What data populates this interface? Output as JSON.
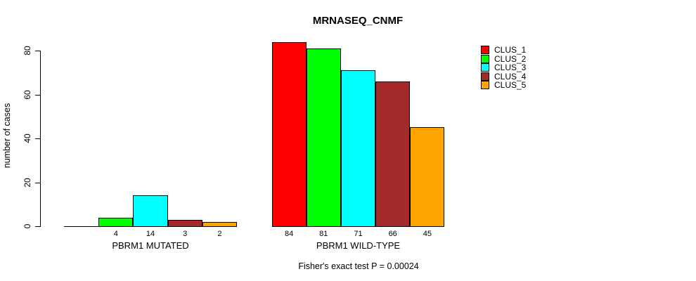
{
  "title": "MRNASEQ_CNMF",
  "subtitle": "Fisher's exact test P = 0.00024",
  "y_axis": {
    "label": "number of cases",
    "ticks": [
      0,
      20,
      40,
      60,
      80
    ]
  },
  "legend": {
    "items": [
      {
        "label": "CLUS_1",
        "color": "#FF0000"
      },
      {
        "label": "CLUS_2",
        "color": "#00FF00"
      },
      {
        "label": "CLUS_3",
        "color": "#00FFFF"
      },
      {
        "label": "CLUS_4",
        "color": "#A52A2A"
      },
      {
        "label": "CLUS_5",
        "color": "#FFA500"
      }
    ]
  },
  "chart_data": {
    "type": "bar",
    "title": "MRNASEQ_CNMF",
    "xlabel": "",
    "ylabel": "number of cases",
    "ylim": [
      0,
      84
    ],
    "axis_ticks": [
      0,
      20,
      40,
      60,
      80
    ],
    "grid": false,
    "legend_position": "right",
    "categories": [
      "PBRM1 MUTATED",
      "PBRM1 WILD-TYPE"
    ],
    "series": [
      {
        "name": "CLUS_1",
        "color": "#FF0000",
        "values": [
          0,
          84
        ]
      },
      {
        "name": "CLUS_2",
        "color": "#00FF00",
        "values": [
          4,
          81
        ]
      },
      {
        "name": "CLUS_3",
        "color": "#00FFFF",
        "values": [
          14,
          71
        ]
      },
      {
        "name": "CLUS_4",
        "color": "#A52A2A",
        "values": [
          3,
          66
        ]
      },
      {
        "name": "CLUS_5",
        "color": "#FFA500",
        "values": [
          2,
          45
        ]
      }
    ],
    "bar_value_labels_shown": true,
    "zero_value_labels_hidden": true,
    "annotation": "Fisher's exact test P = 0.00024"
  }
}
